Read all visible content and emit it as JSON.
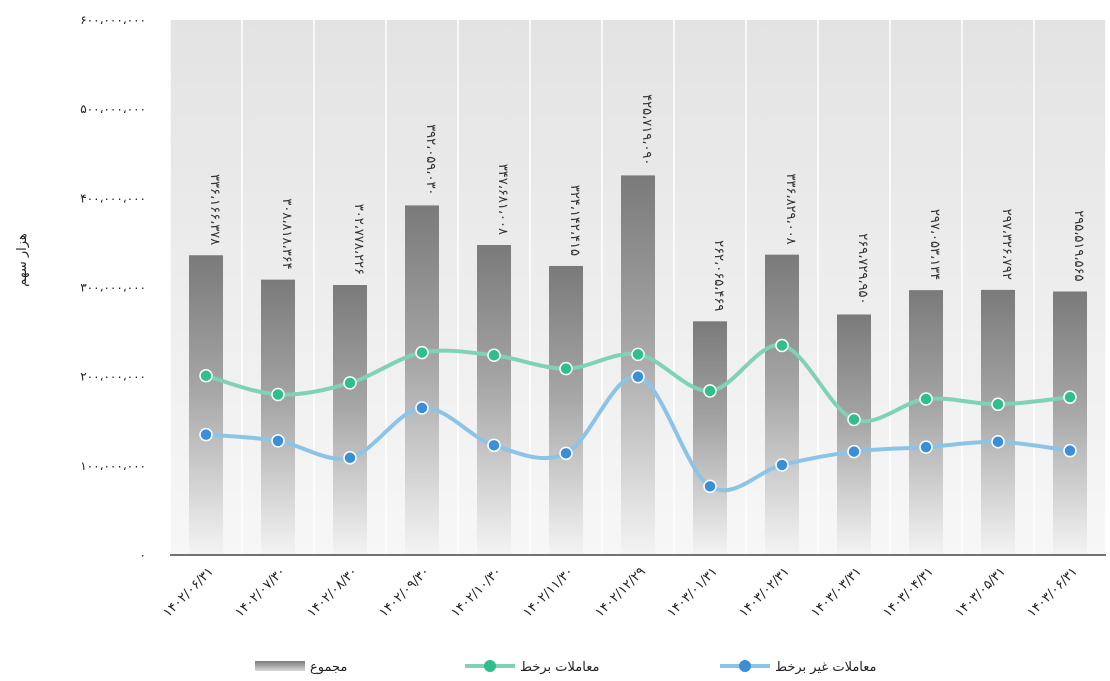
{
  "chart_data": {
    "type": "bar",
    "title": "",
    "xlabel": "",
    "ylabel": "هزار سهم",
    "ylim": [
      0,
      600000000
    ],
    "y_ticks": [
      "۰",
      "۱۰۰،۰۰۰،۰۰۰",
      "۲۰۰،۰۰۰،۰۰۰",
      "۳۰۰،۰۰۰،۰۰۰",
      "۴۰۰،۰۰۰،۰۰۰",
      "۵۰۰،۰۰۰،۰۰۰",
      "۶۰۰،۰۰۰،۰۰۰"
    ],
    "grid": "vertical",
    "legend_position": "bottom",
    "categories": [
      "۱۴۰۲/۰۶/۳۱",
      "۱۴۰۲/۰۷/۳۰",
      "۱۴۰۲/۰۸/۳۰",
      "۱۴۰۲/۰۹/۳۰",
      "۱۴۰۲/۱۰/۳۰",
      "۱۴۰۲/۱۱/۳۰",
      "۱۴۰۲/۱۲/۲۹",
      "۱۴۰۳/۰۱/۳۱",
      "۱۴۰۳/۰۲/۳۱",
      "۱۴۰۳/۰۳/۳۱",
      "۱۴۰۳/۰۴/۳۱",
      "۱۴۰۳/۰۵/۳۱",
      "۱۴۰۳/۰۶/۳۱"
    ],
    "series": [
      {
        "name": "مجموع",
        "kind": "bar",
        "color": "#7f7f7f",
        "values": [
          336166378,
          308818364,
          302778226,
          392059030,
          347681008,
          324142415,
          425719090,
          262065469,
          336829008,
          269729950,
          297053134,
          297326792,
          295519565
        ],
        "labels": [
          "۳۳۶،۱۶۶،۳۷۸",
          "۳۰۸،۸۱۸،۳۶۴",
          "۳۰۲،۷۷۸،۲۲۶",
          "۳۹۲،۰۵۹،۰۳۰",
          "۳۴۷،۶۸۱،۰۰۸",
          "۳۲۴،۱۴۲،۴۱۵",
          "۴۲۵،۷۱۹،۰۹۰",
          "۲۶۲،۰۶۵،۴۶۹",
          "۳۳۶،۸۲۹،۰۰۸",
          "۲۶۹،۷۲۹،۹۵۰",
          "۲۹۷،۰۵۳،۱۳۴",
          "۲۹۷،۳۲۶،۷۹۲",
          "۲۹۵،۵۱۹،۵۶۵"
        ]
      },
      {
        "name": "معاملات برخط",
        "kind": "line",
        "color": "#7fd3b4",
        "marker_color": "#2ebf8a",
        "values": [
          201000000,
          180000000,
          193000000,
          227000000,
          224000000,
          209000000,
          225000000,
          184000000,
          235000000,
          152000000,
          175000000,
          169000000,
          177000000
        ]
      },
      {
        "name": "معاملات غیر برخط",
        "kind": "line",
        "color": "#8cc4e8",
        "marker_color": "#3a8fd8",
        "values": [
          135000000,
          128000000,
          109000000,
          165000000,
          123000000,
          114000000,
          200000000,
          77000000,
          101000000,
          116000000,
          121000000,
          127000000,
          117000000
        ]
      }
    ]
  }
}
